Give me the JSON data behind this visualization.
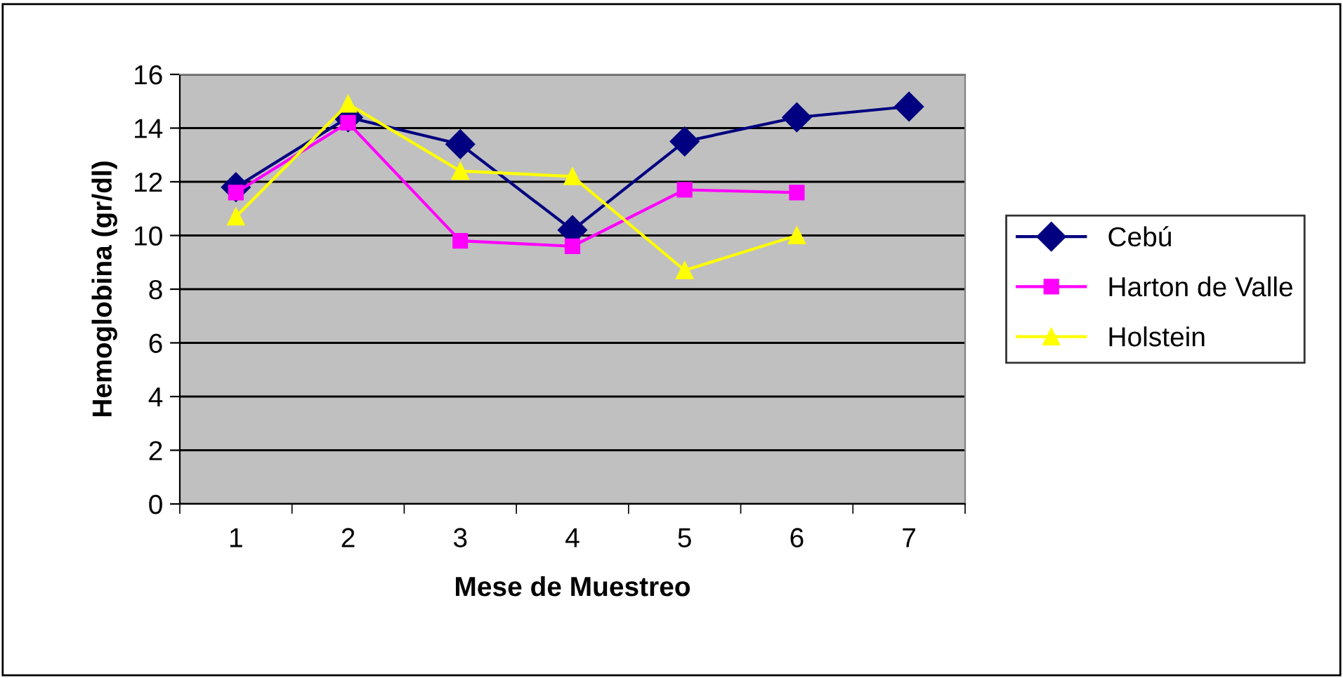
{
  "chart_data": {
    "type": "line",
    "xlabel": "Mese de Muestreo",
    "ylabel": "Hemoglobina (gr/dl)",
    "categories": [
      "1",
      "2",
      "3",
      "4",
      "5",
      "6",
      "7"
    ],
    "series": [
      {
        "name": "Cebú",
        "color": "#000080",
        "marker": "diamond",
        "values": [
          11.8,
          14.4,
          13.4,
          10.2,
          13.5,
          14.4,
          14.8
        ]
      },
      {
        "name": "Harton de Valle",
        "color": "#ff00ff",
        "marker": "square",
        "values": [
          11.6,
          14.2,
          9.8,
          9.6,
          11.7,
          11.6,
          null
        ]
      },
      {
        "name": "Holstein",
        "color": "#ffff00",
        "marker": "triangle",
        "values": [
          10.7,
          14.9,
          12.4,
          12.2,
          8.7,
          10.0,
          null
        ]
      }
    ],
    "ylim": [
      0,
      16
    ],
    "yticks": [
      0,
      2,
      4,
      6,
      8,
      10,
      12,
      14,
      16
    ],
    "grid": "y",
    "legend": "right",
    "line_style": "solid"
  }
}
